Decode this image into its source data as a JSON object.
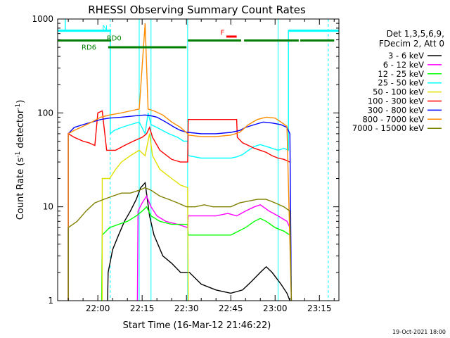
{
  "chart_data": {
    "type": "line",
    "title": "RHESSI Observing Summary Count Rates",
    "xlabel": "Start Time (16-Mar-12 21:46:22)",
    "ylabel_main": "Count Rate (s",
    "ylabel_sup1": "-1",
    "ylabel_mid": " detector",
    "ylabel_sup2": "-1",
    "ylabel_end": ")",
    "yscale": "log",
    "ylim": [
      1,
      1000
    ],
    "xlim": [
      -13.6,
      81.6
    ],
    "x_unit": "minutes after 22:00",
    "x_ticks": [
      {
        "x": 0,
        "label": "22:00"
      },
      {
        "x": 15,
        "label": "22:15"
      },
      {
        "x": 30,
        "label": "22:30"
      },
      {
        "x": 45,
        "label": "22:45"
      },
      {
        "x": 60,
        "label": "23:00"
      },
      {
        "x": 75,
        "label": "23:15"
      }
    ],
    "y_ticks": [
      {
        "y": 1,
        "label": "1"
      },
      {
        "y": 10,
        "label": "10"
      },
      {
        "y": 100,
        "label": "100"
      },
      {
        "y": 1000,
        "label": "1000"
      }
    ],
    "legend_header": [
      "Det 1,3,5,6,9,",
      "FDecim 2, Att 0"
    ],
    "series": [
      {
        "name": "3 - 6 keV",
        "color": "#000000",
        "points": [
          [
            3.3,
            1
          ],
          [
            3.5,
            2
          ],
          [
            5,
            3.5
          ],
          [
            7,
            5
          ],
          [
            9,
            7
          ],
          [
            11,
            9
          ],
          [
            13,
            12
          ],
          [
            14.5,
            16
          ],
          [
            16,
            18
          ],
          [
            17.5,
            8
          ],
          [
            19,
            5
          ],
          [
            22,
            3
          ],
          [
            25,
            2.5
          ],
          [
            28,
            2
          ],
          [
            31,
            2
          ],
          [
            35,
            1.5
          ],
          [
            40,
            1.3
          ],
          [
            45,
            1.2
          ],
          [
            49,
            1.3
          ],
          [
            52,
            1.6
          ],
          [
            55,
            2
          ],
          [
            57,
            2.3
          ],
          [
            59,
            2
          ],
          [
            62,
            1.5
          ],
          [
            64,
            1.2
          ],
          [
            65,
            1
          ]
        ]
      },
      {
        "name": "6 - 12 keV",
        "color": "#ff00ff",
        "points": [
          [
            13.4,
            1
          ],
          [
            13.6,
            9
          ],
          [
            15,
            11
          ],
          [
            16.5,
            13
          ],
          [
            18,
            10
          ],
          [
            20,
            8
          ],
          [
            23,
            7
          ],
          [
            27,
            6.5
          ],
          [
            30.4,
            6
          ],
          [
            30.6,
            8
          ],
          [
            35,
            8
          ],
          [
            40,
            8
          ],
          [
            44,
            8.5
          ],
          [
            47,
            8
          ],
          [
            50,
            9
          ],
          [
            53,
            10
          ],
          [
            55,
            10.5
          ],
          [
            58,
            9
          ],
          [
            61,
            8
          ],
          [
            64,
            7
          ],
          [
            65,
            6
          ]
        ]
      },
      {
        "name": "12 - 25 keV",
        "color": "#00ff00",
        "points": [
          [
            1.3,
            1
          ],
          [
            1.5,
            5
          ],
          [
            4,
            6
          ],
          [
            7,
            6.5
          ],
          [
            10,
            7
          ],
          [
            13,
            8
          ],
          [
            15,
            9
          ],
          [
            16.5,
            10
          ],
          [
            18,
            8
          ],
          [
            21,
            7
          ],
          [
            25,
            6.5
          ],
          [
            28,
            6.5
          ],
          [
            30.4,
            6.5
          ],
          [
            30.6,
            5
          ],
          [
            35,
            5
          ],
          [
            40,
            5
          ],
          [
            45,
            5
          ],
          [
            50,
            6
          ],
          [
            53,
            7
          ],
          [
            55,
            7.5
          ],
          [
            57,
            7
          ],
          [
            60,
            6
          ],
          [
            63,
            5.5
          ],
          [
            65,
            5
          ]
        ]
      },
      {
        "name": "25 - 50 keV",
        "color": "#00ffff",
        "points": [
          [
            -11,
            1000
          ],
          [
            -11,
            750
          ],
          [
            4.2,
            750
          ],
          [
            4.2,
            60
          ],
          [
            5.5,
            65
          ],
          [
            8,
            70
          ],
          [
            11,
            75
          ],
          [
            14,
            80
          ],
          [
            16,
            60
          ],
          [
            17,
            100
          ],
          [
            18,
            75
          ],
          [
            20,
            70
          ],
          [
            24,
            60
          ],
          [
            27,
            55
          ],
          [
            29,
            50
          ],
          [
            30.4,
            50
          ],
          [
            30.6,
            35
          ],
          [
            35,
            33
          ],
          [
            40,
            33
          ],
          [
            45,
            33
          ],
          [
            47,
            34
          ],
          [
            49,
            36
          ],
          [
            51,
            40
          ],
          [
            53,
            44
          ],
          [
            55,
            46
          ],
          [
            57,
            44
          ],
          [
            59,
            42
          ],
          [
            61,
            40
          ],
          [
            63,
            42
          ],
          [
            64.5,
            40
          ],
          [
            64.5,
            750
          ],
          [
            80,
            750
          ]
        ]
      },
      {
        "name": "50 - 100 keV",
        "color": "#e0e000",
        "points": [
          [
            1.5,
            1
          ],
          [
            1.5,
            20
          ],
          [
            4,
            20
          ],
          [
            6,
            25
          ],
          [
            8,
            30
          ],
          [
            11,
            35
          ],
          [
            14,
            40
          ],
          [
            16,
            35
          ],
          [
            17.5,
            60
          ],
          [
            18.5,
            35
          ],
          [
            21,
            25
          ],
          [
            25,
            20
          ],
          [
            28,
            17
          ],
          [
            30.4,
            16
          ],
          [
            30.6,
            1
          ]
        ]
      },
      {
        "name": "100 - 300 keV",
        "color": "#ff0000",
        "points": [
          [
            -10,
            1
          ],
          [
            -10,
            60
          ],
          [
            -8,
            55
          ],
          [
            -5,
            50
          ],
          [
            -3,
            48
          ],
          [
            -1,
            45
          ],
          [
            0,
            100
          ],
          [
            1.5,
            105
          ],
          [
            3,
            40
          ],
          [
            6,
            40
          ],
          [
            9,
            45
          ],
          [
            12,
            50
          ],
          [
            15,
            55
          ],
          [
            16.5,
            60
          ],
          [
            17.5,
            70
          ],
          [
            18.5,
            55
          ],
          [
            21,
            40
          ],
          [
            25,
            32
          ],
          [
            28,
            30
          ],
          [
            30.4,
            30
          ],
          [
            30.6,
            85
          ],
          [
            35,
            85
          ],
          [
            40,
            85
          ],
          [
            45,
            85
          ],
          [
            47,
            85
          ],
          [
            47.2,
            55
          ],
          [
            49,
            48
          ],
          [
            51,
            45
          ],
          [
            53,
            42
          ],
          [
            55,
            40
          ],
          [
            57,
            38
          ],
          [
            59,
            35
          ],
          [
            61,
            33
          ],
          [
            63,
            32
          ],
          [
            65,
            30
          ]
        ]
      },
      {
        "name": "300 - 800 keV",
        "color": "#0000ff",
        "points": [
          [
            -10,
            1
          ],
          [
            -10,
            60
          ],
          [
            -8,
            70
          ],
          [
            -5,
            75
          ],
          [
            -2,
            80
          ],
          [
            1,
            85
          ],
          [
            4,
            88
          ],
          [
            8,
            90
          ],
          [
            11,
            92
          ],
          [
            14,
            94
          ],
          [
            16,
            95
          ],
          [
            18,
            93
          ],
          [
            20,
            90
          ],
          [
            23,
            80
          ],
          [
            26,
            70
          ],
          [
            28,
            65
          ],
          [
            30.4,
            62
          ],
          [
            30.6,
            62
          ],
          [
            35,
            60
          ],
          [
            40,
            60
          ],
          [
            45,
            62
          ],
          [
            48,
            65
          ],
          [
            50,
            70
          ],
          [
            53,
            75
          ],
          [
            56,
            80
          ],
          [
            59,
            78
          ],
          [
            62,
            75
          ],
          [
            64,
            70
          ],
          [
            65,
            60
          ],
          [
            65.5,
            1
          ]
        ]
      },
      {
        "name": "800 - 7000 keV",
        "color": "#ff8c00",
        "points": [
          [
            -10,
            1
          ],
          [
            -10,
            60
          ],
          [
            -8,
            65
          ],
          [
            -5,
            72
          ],
          [
            -2,
            80
          ],
          [
            1,
            90
          ],
          [
            4,
            95
          ],
          [
            8,
            100
          ],
          [
            11,
            105
          ],
          [
            14,
            110
          ],
          [
            16,
            900
          ],
          [
            17,
            110
          ],
          [
            19,
            105
          ],
          [
            22,
            95
          ],
          [
            25,
            80
          ],
          [
            28,
            70
          ],
          [
            30.4,
            60
          ],
          [
            30.6,
            58
          ],
          [
            35,
            56
          ],
          [
            40,
            56
          ],
          [
            45,
            58
          ],
          [
            48,
            62
          ],
          [
            51,
            75
          ],
          [
            54,
            85
          ],
          [
            57,
            90
          ],
          [
            60,
            88
          ],
          [
            62,
            80
          ],
          [
            64,
            72
          ],
          [
            65.5,
            1
          ]
        ]
      },
      {
        "name": "7000 - 15000 keV",
        "color": "#808000",
        "points": [
          [
            -10,
            1
          ],
          [
            -10,
            6
          ],
          [
            -7,
            7
          ],
          [
            -4,
            9
          ],
          [
            -1,
            11
          ],
          [
            2,
            12
          ],
          [
            5,
            13
          ],
          [
            8,
            14
          ],
          [
            11,
            14
          ],
          [
            14,
            15
          ],
          [
            16,
            16
          ],
          [
            18,
            15
          ],
          [
            21,
            13
          ],
          [
            24,
            12
          ],
          [
            27,
            11
          ],
          [
            30,
            10
          ],
          [
            33,
            10
          ],
          [
            36,
            10.5
          ],
          [
            39,
            10
          ],
          [
            42,
            10
          ],
          [
            45,
            10
          ],
          [
            48,
            11
          ],
          [
            51,
            11.5
          ],
          [
            54,
            12
          ],
          [
            57,
            12
          ],
          [
            60,
            11
          ],
          [
            63,
            10
          ],
          [
            65,
            9
          ],
          [
            65.5,
            1
          ]
        ]
      }
    ],
    "annotations": [
      {
        "label": "N",
        "color": "#00ffff",
        "x": 1.5,
        "y": 760
      },
      {
        "label": "RD0",
        "color": "#008000",
        "x": 3,
        "y": 590
      },
      {
        "label": "RD6",
        "color": "#008000",
        "x": -5.5,
        "y": 470
      },
      {
        "label": "F",
        "color": "#ff0000",
        "x": 41.5,
        "y": 680
      }
    ],
    "bars": [
      {
        "label": "N",
        "color": "#00ffff",
        "y": 750,
        "segments": [
          [
            -13.6,
            4.5
          ],
          [
            64.5,
            81.6
          ]
        ]
      },
      {
        "label": "RD0",
        "color": "#008000",
        "y": 590,
        "segments": [
          [
            -13.6,
            4.5
          ],
          [
            30.5,
            48.5
          ],
          [
            49.5,
            68
          ],
          [
            68.5,
            80
          ]
        ]
      },
      {
        "label": "RD6",
        "color": "#008000",
        "y": 500,
        "segments": [
          [
            3.5,
            30
          ]
        ]
      },
      {
        "label": "F",
        "color": "#ff0000",
        "y": 650,
        "segments": [
          [
            43.5,
            47
          ]
        ]
      }
    ],
    "vertical_lines": [
      {
        "color": "#00ffff",
        "style": "dashed",
        "x": 4.2
      },
      {
        "color": "#00ffff",
        "style": "solid",
        "x": 14
      },
      {
        "color": "#00ffff",
        "style": "solid",
        "x": 18
      },
      {
        "color": "#00ffff",
        "style": "solid",
        "x": 30.4
      },
      {
        "color": "#00ffff",
        "style": "solid",
        "x": 61
      },
      {
        "color": "#00ffff",
        "style": "dashed",
        "x": 78
      }
    ],
    "footer_date": "19-Oct-2021 18:00"
  }
}
